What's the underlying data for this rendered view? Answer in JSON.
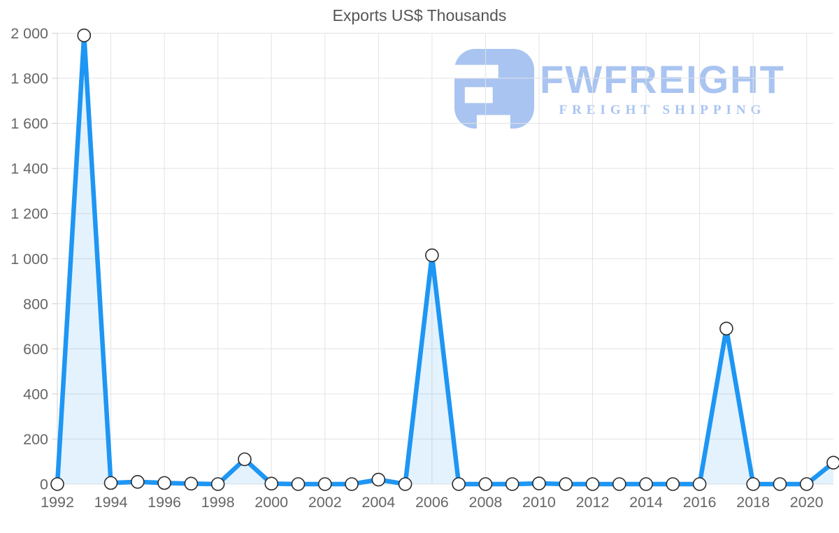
{
  "title": "Exports US$ Thousands",
  "logo": {
    "wordmark": "FWFREIGHT",
    "tagline": "FREIGHT SHIPPING",
    "color": "#a9c4f1"
  },
  "chart_data": {
    "type": "area",
    "title": "Exports US$ Thousands",
    "xlabel": "",
    "ylabel": "",
    "series_name": "Exports US$ Thousands",
    "x": [
      1992,
      1993,
      1994,
      1995,
      1996,
      1997,
      1998,
      1999,
      2000,
      2001,
      2002,
      2003,
      2004,
      2005,
      2006,
      2007,
      2008,
      2009,
      2010,
      2011,
      2012,
      2013,
      2014,
      2015,
      2016,
      2017,
      2018,
      2019,
      2020,
      2021
    ],
    "values": [
      0,
      1990,
      5,
      10,
      5,
      2,
      0,
      110,
      2,
      0,
      0,
      0,
      20,
      0,
      1015,
      0,
      0,
      0,
      3,
      0,
      0,
      0,
      0,
      0,
      0,
      690,
      0,
      0,
      0,
      95
    ],
    "ylim": [
      0,
      2000
    ],
    "y_ticks": [
      0,
      200,
      400,
      600,
      800,
      1000,
      1200,
      1400,
      1600,
      1800,
      2000
    ],
    "y_tick_labels": [
      "0",
      "200",
      "400",
      "600",
      "800",
      "1 000",
      "1 200",
      "1 400",
      "1 600",
      "1 800",
      "2 000"
    ],
    "x_ticks": [
      1992,
      1994,
      1996,
      1998,
      2000,
      2002,
      2004,
      2006,
      2008,
      2010,
      2012,
      2014,
      2016,
      2018,
      2020
    ],
    "x_tick_labels": [
      "1992",
      "1994",
      "1996",
      "1998",
      "2000",
      "2002",
      "2004",
      "2006",
      "2008",
      "2010",
      "2012",
      "2014",
      "2016",
      "2018",
      "2020"
    ],
    "grid": true,
    "legend": false,
    "marker": "circle",
    "colors": {
      "line": "#1e96f3",
      "fill": "rgba(30,150,243,0.12)",
      "marker_fill": "#ffffff",
      "marker_stroke": "#2b2b2b",
      "grid": "#e3e3e3",
      "axis": "#d2d2d2",
      "tick": "#cfcfcf",
      "tick_label": "#666666",
      "title": "#555555"
    }
  }
}
